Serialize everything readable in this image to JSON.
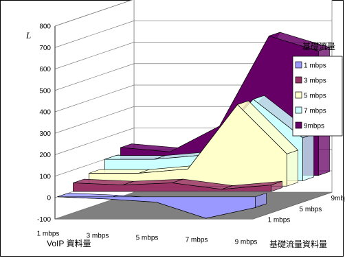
{
  "chart_data": {
    "type": "area",
    "title": "",
    "ylabel": "L",
    "xlabel": "VoIP 資料量",
    "zlabel": "基礎流量資料量",
    "legend_title": "基礎流量",
    "ylim": [
      -100,
      800
    ],
    "yticks": [
      -100,
      0,
      100,
      200,
      300,
      400,
      500,
      600,
      700,
      800
    ],
    "categories": [
      "1 mbps",
      "3 mbps",
      "5 mbps",
      "7 mbps",
      "9 mbps"
    ],
    "depth_labels": [
      "1 mbps",
      "5 mbps",
      "9mbps"
    ],
    "series": [
      {
        "name": "1 mbps",
        "color": "#9999ff",
        "values": [
          0,
          -10,
          -25,
          -100,
          -50
        ]
      },
      {
        "name": "3 mbps",
        "color": "#993366",
        "values": [
          40,
          30,
          40,
          10,
          30
        ]
      },
      {
        "name": "5 mbps",
        "color": "#ffffcc",
        "values": [
          60,
          60,
          80,
          380,
          150
        ]
      },
      {
        "name": "7 mbps",
        "color": "#ccffff",
        "values": [
          100,
          100,
          120,
          380,
          200
        ]
      },
      {
        "name": "9mbps",
        "color": "#660066",
        "values": [
          130,
          110,
          230,
          650,
          580
        ]
      }
    ],
    "legend_position": "right",
    "grid": true
  }
}
